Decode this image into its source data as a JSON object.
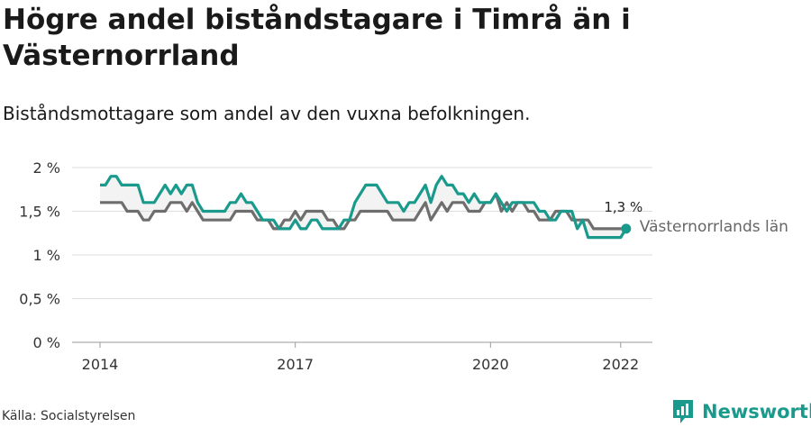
{
  "title": "Högre andel biståndstagare i Timrå än i Västernorrland",
  "subtitle": "Biståndsmottagare som andel av den vuxna befolkningen.",
  "source": "Källa: Socialstyrelsen",
  "brand": "Newsworthy",
  "colors": {
    "timra": "#1a9a8c",
    "vasternorrland": "#6e6e6e",
    "grid": "#dddddd",
    "fill": "#dcdcdc"
  },
  "chart_data": {
    "type": "line",
    "yticks": [
      "0 %",
      "0,5 %",
      "1 %",
      "1,5 %",
      "2 %"
    ],
    "ytick_values": [
      0,
      0.5,
      1,
      1.5,
      2
    ],
    "xticks": [
      "2014",
      "2017",
      "2020",
      "2022"
    ],
    "xtick_values": [
      2014,
      2017,
      2020,
      2022
    ],
    "xlim": [
      2014,
      2022.1
    ],
    "ylim": [
      0,
      2
    ],
    "end_label": "1,3 %",
    "series": [
      {
        "name": "",
        "key": "timra",
        "x_start": 2014,
        "step_months": 1,
        "values": [
          1.8,
          1.8,
          1.9,
          1.9,
          1.8,
          1.8,
          1.8,
          1.8,
          1.6,
          1.6,
          1.6,
          1.7,
          1.8,
          1.7,
          1.8,
          1.7,
          1.8,
          1.8,
          1.6,
          1.5,
          1.5,
          1.5,
          1.5,
          1.5,
          1.6,
          1.6,
          1.7,
          1.6,
          1.6,
          1.5,
          1.4,
          1.4,
          1.4,
          1.3,
          1.3,
          1.3,
          1.4,
          1.3,
          1.3,
          1.4,
          1.4,
          1.3,
          1.3,
          1.3,
          1.3,
          1.4,
          1.4,
          1.6,
          1.7,
          1.8,
          1.8,
          1.8,
          1.7,
          1.6,
          1.6,
          1.6,
          1.5,
          1.6,
          1.6,
          1.7,
          1.8,
          1.6,
          1.8,
          1.9,
          1.8,
          1.8,
          1.7,
          1.7,
          1.6,
          1.7,
          1.6,
          1.6,
          1.6,
          1.7,
          1.6,
          1.5,
          1.6,
          1.6,
          1.6,
          1.6,
          1.6,
          1.5,
          1.5,
          1.4,
          1.4,
          1.5,
          1.5,
          1.5,
          1.3,
          1.4,
          1.2,
          1.2,
          1.2,
          1.2,
          1.2,
          1.2,
          1.2,
          1.3
        ]
      },
      {
        "name": "Västernorrlands län",
        "key": "vasternorrland",
        "x_start": 2014,
        "step_months": 1,
        "values": [
          1.6,
          1.6,
          1.6,
          1.6,
          1.6,
          1.5,
          1.5,
          1.5,
          1.4,
          1.4,
          1.5,
          1.5,
          1.5,
          1.6,
          1.6,
          1.6,
          1.5,
          1.6,
          1.5,
          1.4,
          1.4,
          1.4,
          1.4,
          1.4,
          1.4,
          1.5,
          1.5,
          1.5,
          1.5,
          1.4,
          1.4,
          1.4,
          1.3,
          1.3,
          1.4,
          1.4,
          1.5,
          1.4,
          1.5,
          1.5,
          1.5,
          1.5,
          1.4,
          1.4,
          1.3,
          1.3,
          1.4,
          1.4,
          1.5,
          1.5,
          1.5,
          1.5,
          1.5,
          1.5,
          1.4,
          1.4,
          1.4,
          1.4,
          1.4,
          1.5,
          1.6,
          1.4,
          1.5,
          1.6,
          1.5,
          1.6,
          1.6,
          1.6,
          1.5,
          1.5,
          1.5,
          1.6,
          1.6,
          1.7,
          1.5,
          1.6,
          1.5,
          1.6,
          1.6,
          1.5,
          1.5,
          1.4,
          1.4,
          1.4,
          1.5,
          1.5,
          1.5,
          1.4,
          1.4,
          1.4,
          1.4,
          1.3,
          1.3,
          1.3,
          1.3,
          1.3,
          1.3,
          1.3
        ]
      }
    ]
  }
}
